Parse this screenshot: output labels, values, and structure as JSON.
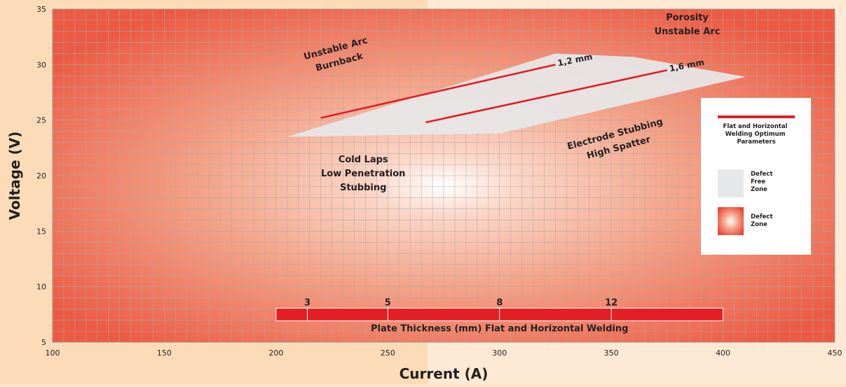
{
  "chart_data": {
    "type": "line",
    "xlabel": "Current (A)",
    "ylabel": "Voltage (V)",
    "xlim": [
      100,
      450
    ],
    "ylim": [
      5,
      35
    ],
    "x_ticks": [
      100,
      150,
      200,
      250,
      300,
      350,
      400,
      450
    ],
    "y_ticks": [
      5,
      10,
      15,
      20,
      25,
      30,
      35
    ],
    "grid": true,
    "series": [
      {
        "name": "1,2 mm",
        "x": [
          220,
          325
        ],
        "y": [
          25.2,
          30.0
        ],
        "color": "#e31e24"
      },
      {
        "name": "1,6 mm",
        "x": [
          267,
          375
        ],
        "y": [
          24.8,
          29.5
        ],
        "color": "#e31e24"
      }
    ],
    "defect_free_zone": {
      "x": [
        205,
        205,
        325,
        360,
        410,
        300,
        205
      ],
      "y": [
        25.8,
        23.5,
        31.0,
        30.7,
        28.9,
        23.8,
        23.5
      ]
    },
    "annotations": [
      {
        "lines": [
          "Unstable Arc",
          "Burnback"
        ],
        "x": 227,
        "y": 31.2,
        "rotate": -15
      },
      {
        "lines": [
          "Porosity",
          "Unstable Arc"
        ],
        "x": 384,
        "y": 34.0,
        "rotate": 0
      },
      {
        "lines": [
          "Cold Laps",
          "Low Penetration",
          "Stubbing"
        ],
        "x": 239,
        "y": 21.2,
        "rotate": 0
      },
      {
        "lines": [
          "Electrode Stubbing",
          "High Spatter"
        ],
        "x": 352,
        "y": 23.5,
        "rotate": -15
      }
    ],
    "plate_thickness": {
      "label": "Plate Thickness (mm) Flat and Horizontal Welding",
      "x_start": 200,
      "x_end": 400,
      "y": 7.5,
      "marks": [
        {
          "label": "3",
          "x": 214
        },
        {
          "label": "5",
          "x": 250
        },
        {
          "label": "8",
          "x": 300
        },
        {
          "label": "12",
          "x": 350
        }
      ]
    },
    "legend": {
      "position": "right",
      "items": [
        {
          "label": "Flat and Horizontal Welding Optimum Parameters",
          "kind": "line",
          "color": "#e31e24"
        },
        {
          "label": "Defect Free Zone",
          "kind": "swatch",
          "color": "#e6e7e8"
        },
        {
          "label": "Defect Zone",
          "kind": "gradient",
          "color": "#e8473a"
        }
      ]
    }
  }
}
